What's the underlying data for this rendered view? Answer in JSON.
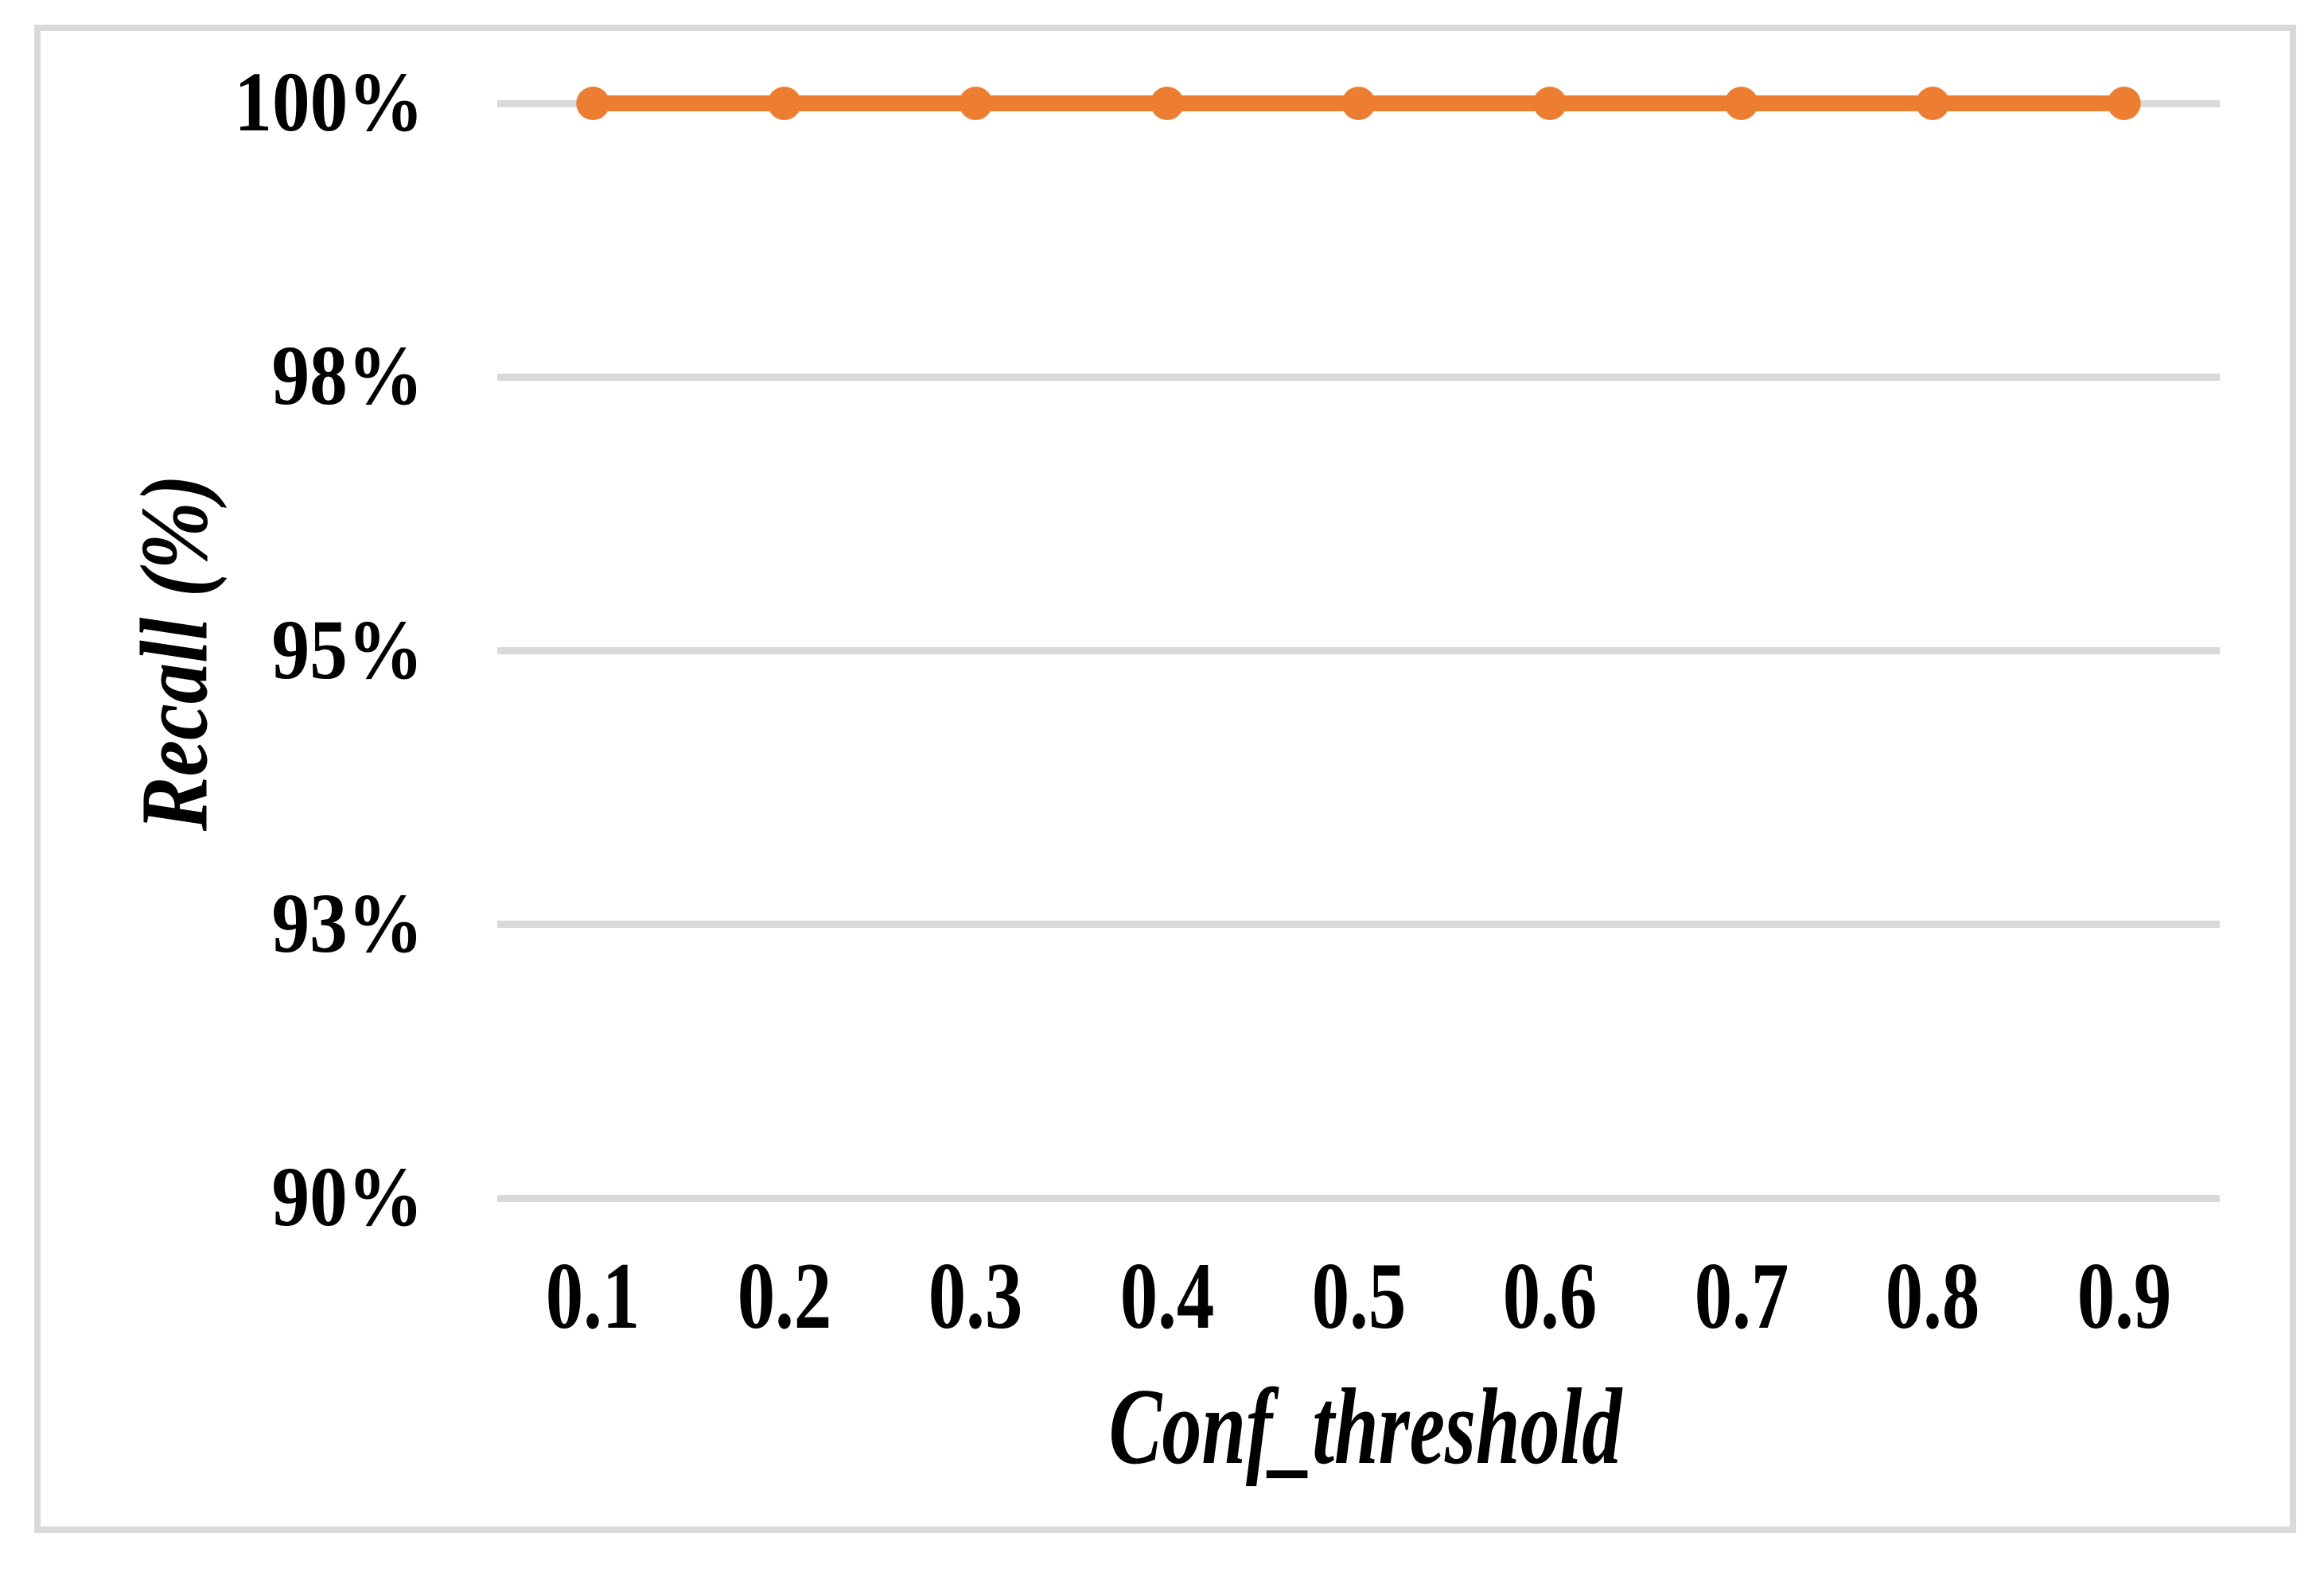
{
  "figure": {
    "background": "#FFFFFF",
    "border_color": "#D9D9D9"
  },
  "chart_data": {
    "type": "line",
    "title": "",
    "xlabel": "Conf_threshold",
    "ylabel": "Recall (%)",
    "x": [
      0.1,
      0.2,
      0.3,
      0.4,
      0.5,
      0.6,
      0.7,
      0.8,
      0.9
    ],
    "x_tick_labels": [
      "0.1",
      "0.2",
      "0.3",
      "0.4",
      "0.5",
      "0.6",
      "0.7",
      "0.8",
      "0.9"
    ],
    "series": [
      {
        "name": "Recall",
        "values": [
          100,
          100,
          100,
          100,
          100,
          100,
          100,
          100,
          100
        ],
        "color": "#ED7D31",
        "marker": "circle",
        "marker_radius": 21,
        "line_width": 20
      }
    ],
    "ylim": [
      90,
      100
    ],
    "y_ticks": [
      {
        "value": 100,
        "label": "100%"
      },
      {
        "value": 97.5,
        "label": "98%"
      },
      {
        "value": 95,
        "label": "95%"
      },
      {
        "value": 92.5,
        "label": "93%"
      },
      {
        "value": 90,
        "label": "90%"
      }
    ],
    "grid": "horizontal",
    "gridline_color": "#D9D9D9",
    "legend": "none"
  }
}
